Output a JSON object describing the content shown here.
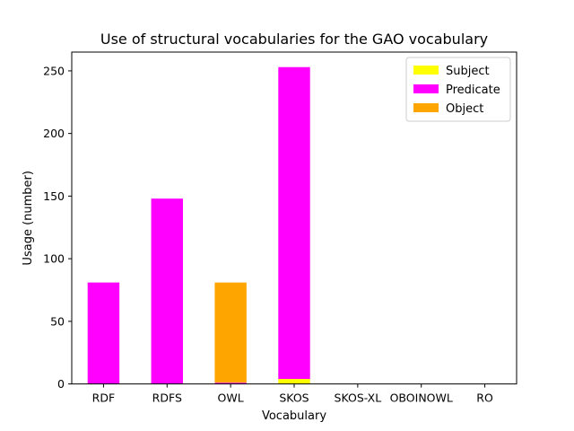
{
  "chart_data": {
    "type": "bar",
    "stacked": true,
    "title": "Use of structural vocabularies for the GAO vocabulary",
    "xlabel": "Vocabulary",
    "ylabel": "Usage (number)",
    "categories": [
      "RDF",
      "RDFS",
      "OWL",
      "SKOS",
      "SKOS-XL",
      "OBOINOWL",
      "RO"
    ],
    "ylim": [
      0,
      265
    ],
    "yticks": [
      0,
      50,
      100,
      150,
      200,
      250
    ],
    "grid": false,
    "legend_position": "top-right",
    "series": [
      {
        "name": "Subject",
        "color": "#ffff00",
        "values": [
          0,
          0,
          0,
          4,
          0,
          0,
          0
        ]
      },
      {
        "name": "Predicate",
        "color": "#ff00ff",
        "values": [
          81,
          148,
          1,
          249,
          0,
          0,
          0
        ]
      },
      {
        "name": "Object",
        "color": "#ffa500",
        "values": [
          0,
          0,
          80,
          0,
          0,
          0,
          0
        ]
      }
    ]
  }
}
